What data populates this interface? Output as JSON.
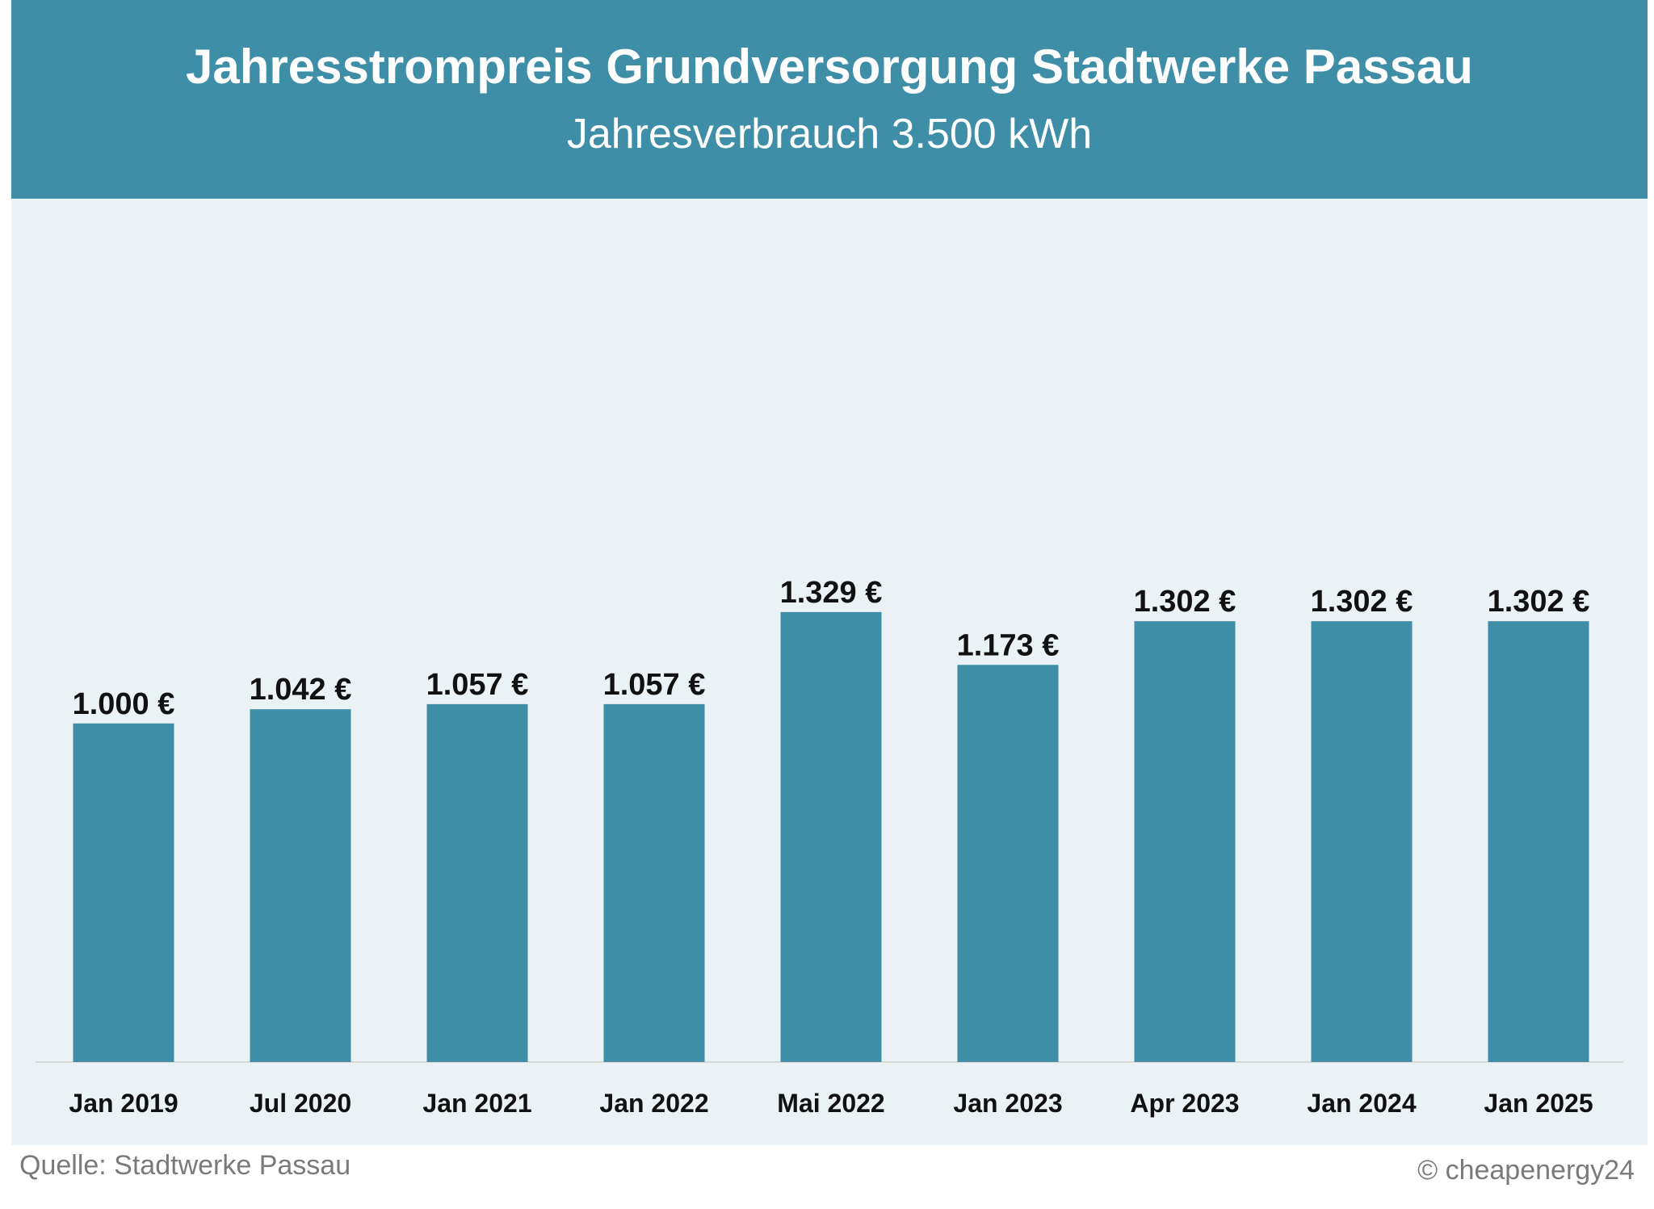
{
  "chart_data": {
    "type": "bar",
    "title": "Jahresstrompreis Grundversorgung Stadtwerke Passau",
    "subtitle": "Jahresverbrauch 3.500 kWh",
    "categories": [
      "Jan 2019",
      "Jul 2020",
      "Jan 2021",
      "Jan 2022",
      "Mai 2022",
      "Jan 2023",
      "Apr 2023",
      "Jan 2024",
      "Jan 2025"
    ],
    "values": [
      1000,
      1042,
      1057,
      1057,
      1329,
      1173,
      1302,
      1302,
      1302
    ],
    "data_labels": [
      "1.000 €",
      "1.042 €",
      "1.057 €",
      "1.057 €",
      "1.329 €",
      "1.173 €",
      "1.302 €",
      "1.302 €",
      "1.302 €"
    ],
    "xlabel": "",
    "ylabel": "",
    "ylim": [
      0,
      2550
    ],
    "grid": false,
    "colors": {
      "bar": "#3e8ea8",
      "header": "#3e8ea8",
      "plot_background": "#eaf2f5",
      "baseline": "#d9d9d9",
      "label_text": "#111111",
      "footer_text": "#7a7a7a"
    }
  },
  "footer": {
    "source": "Quelle: Stadtwerke Passau",
    "copyright": "© cheapenergy24"
  }
}
